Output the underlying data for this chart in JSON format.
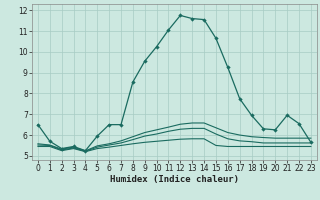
{
  "xlabel": "Humidex (Indice chaleur)",
  "xlim": [
    -0.5,
    23.5
  ],
  "ylim": [
    4.8,
    12.3
  ],
  "bg_color": "#cce8e0",
  "grid_color": "#a8ccc4",
  "line_color": "#1a6b60",
  "x_ticks": [
    0,
    1,
    2,
    3,
    4,
    5,
    6,
    7,
    8,
    9,
    10,
    11,
    12,
    13,
    14,
    15,
    16,
    17,
    18,
    19,
    20,
    21,
    22,
    23
  ],
  "y_ticks": [
    5,
    6,
    7,
    8,
    9,
    10,
    11,
    12
  ],
  "line1_x": [
    0,
    1,
    2,
    3,
    4,
    5,
    6,
    7,
    8,
    9,
    10,
    11,
    12,
    13,
    14,
    15,
    16,
    17,
    18,
    19,
    20,
    21,
    22,
    23
  ],
  "line1_y": [
    6.5,
    5.7,
    5.35,
    5.45,
    5.25,
    5.95,
    6.5,
    6.5,
    8.55,
    9.55,
    10.25,
    11.05,
    11.75,
    11.6,
    11.55,
    10.65,
    9.25,
    7.75,
    6.95,
    6.3,
    6.25,
    6.95,
    6.55,
    5.65
  ],
  "line2_x": [
    0,
    1,
    2,
    3,
    4,
    5,
    6,
    7,
    8,
    9,
    10,
    11,
    12,
    13,
    14,
    15,
    16,
    17,
    18,
    19,
    20,
    21,
    22,
    23
  ],
  "line2_y": [
    5.45,
    5.45,
    5.25,
    5.35,
    5.2,
    5.35,
    5.42,
    5.5,
    5.58,
    5.65,
    5.7,
    5.75,
    5.8,
    5.82,
    5.82,
    5.5,
    5.45,
    5.45,
    5.45,
    5.45,
    5.45,
    5.45,
    5.45,
    5.45
  ],
  "line3_x": [
    0,
    1,
    2,
    3,
    4,
    5,
    6,
    7,
    8,
    9,
    10,
    11,
    12,
    13,
    14,
    15,
    16,
    17,
    18,
    19,
    20,
    21,
    22,
    23
  ],
  "line3_y": [
    5.52,
    5.5,
    5.28,
    5.38,
    5.22,
    5.42,
    5.52,
    5.62,
    5.78,
    5.95,
    6.05,
    6.18,
    6.28,
    6.32,
    6.32,
    6.05,
    5.82,
    5.72,
    5.68,
    5.62,
    5.62,
    5.62,
    5.62,
    5.62
  ],
  "line4_x": [
    0,
    1,
    2,
    3,
    4,
    5,
    6,
    7,
    8,
    9,
    10,
    11,
    12,
    13,
    14,
    15,
    16,
    17,
    18,
    19,
    20,
    21,
    22,
    23
  ],
  "line4_y": [
    5.58,
    5.52,
    5.32,
    5.42,
    5.24,
    5.48,
    5.58,
    5.72,
    5.92,
    6.12,
    6.25,
    6.38,
    6.52,
    6.58,
    6.58,
    6.35,
    6.12,
    6.0,
    5.92,
    5.88,
    5.85,
    5.85,
    5.85,
    5.85
  ]
}
